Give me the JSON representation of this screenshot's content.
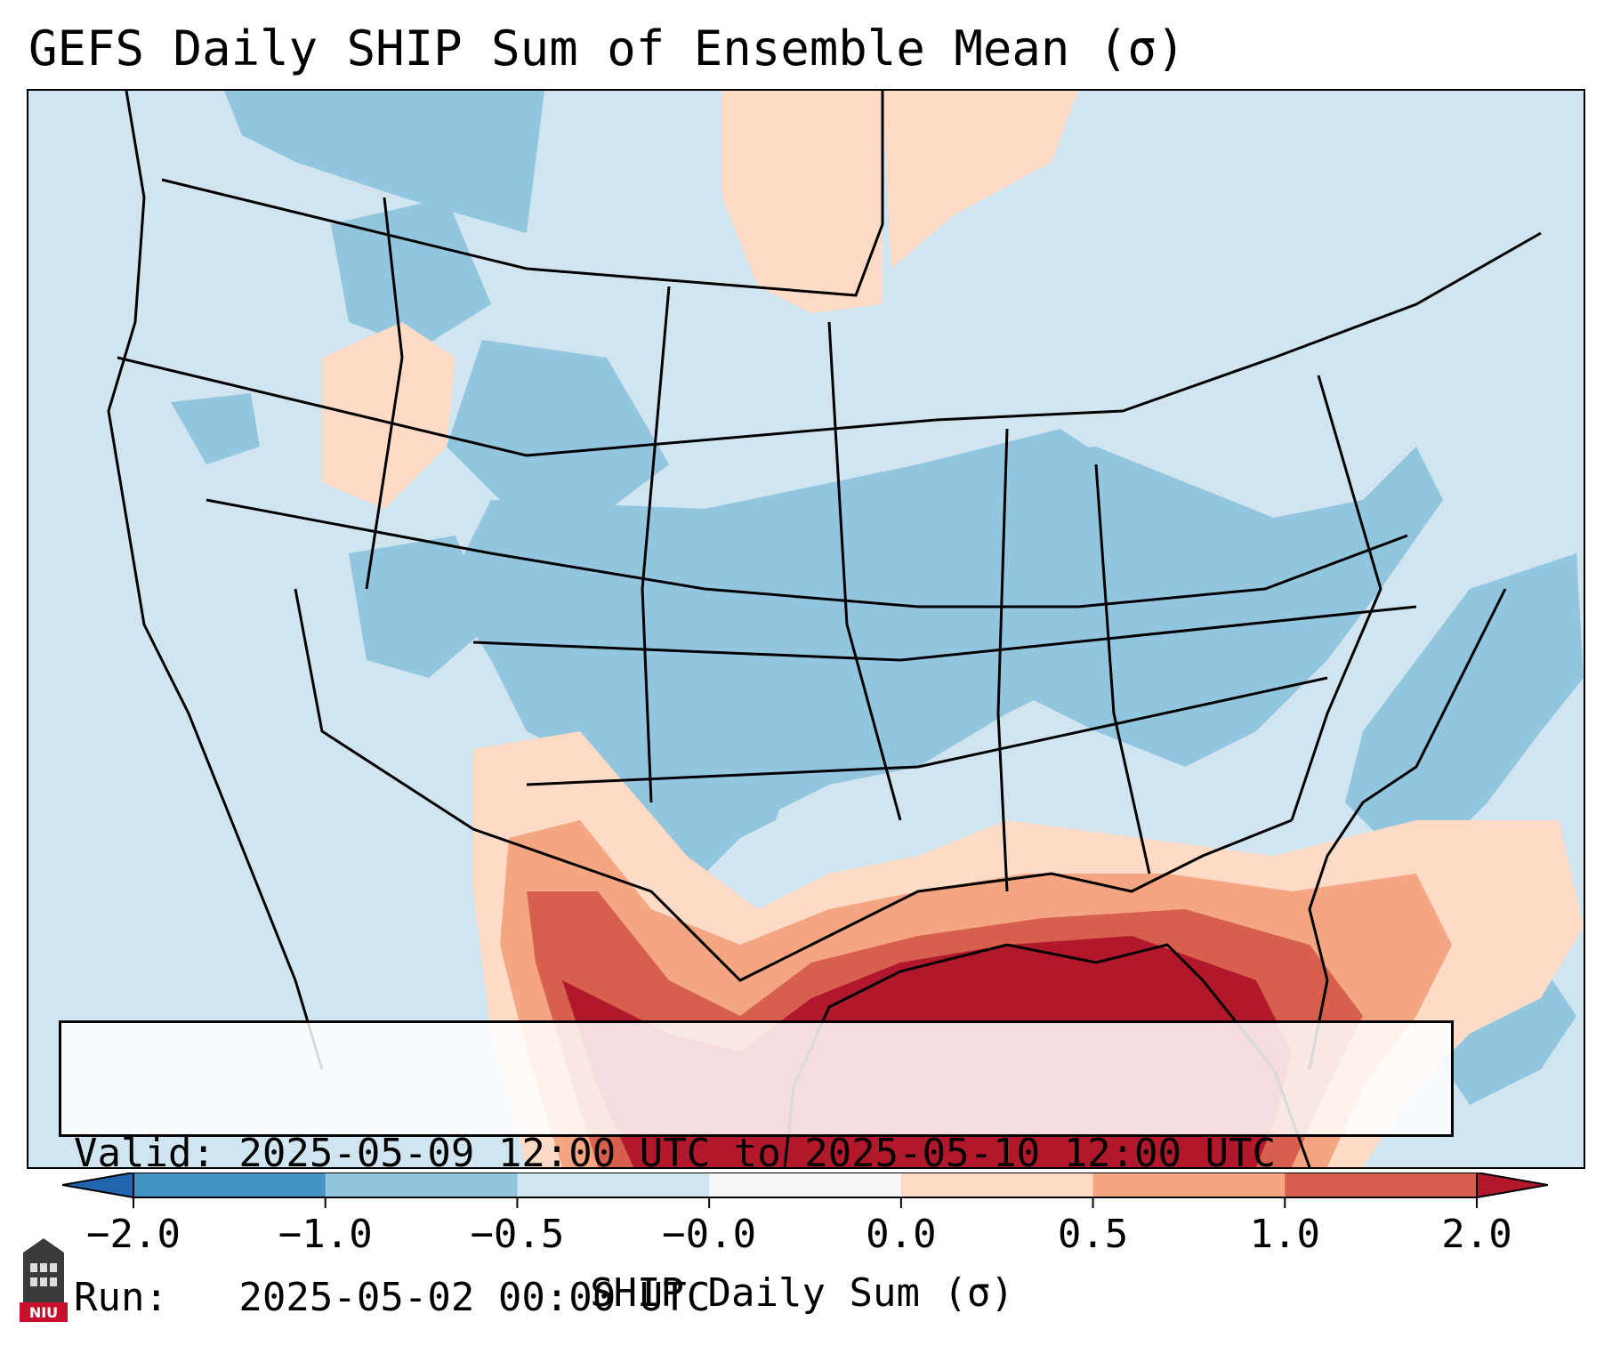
{
  "title": "GEFS Daily SHIP Sum of Ensemble Mean (σ)",
  "info": {
    "valid_line": "Valid: 2025-05-09 12:00 UTC to 2025-05-10 12:00 UTC",
    "run_line": "Run:   2025-05-02 00:00 UTC"
  },
  "colorbar": {
    "label": "SHIP Daily Sum (σ)",
    "ticks": [
      "−2.0",
      "−1.0",
      "−0.5",
      "−0.0",
      "0.0",
      "0.5",
      "1.0",
      "2.0"
    ],
    "colors": [
      "#4393c3",
      "#92c5de",
      "#d1e5f0",
      "#f7f7f7",
      "#fddbc7",
      "#f4a582",
      "#d6604d"
    ],
    "under_color": "#2166ac",
    "over_color": "#b2182b"
  },
  "legend_colors": {
    "background": "#d1e5f0",
    "negative_moderate": "#92c5de",
    "positive_weak": "#fddbc7",
    "positive_moderate": "#f4a582",
    "positive_strong": "#d6604d",
    "positive_extreme": "#b2182b"
  },
  "logo": {
    "text": "NIU",
    "icon": "niu-university-logo"
  }
}
